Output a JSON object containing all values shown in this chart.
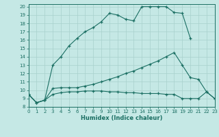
{
  "xlabel": "Humidex (Indice chaleur)",
  "background_color": "#c5e8e5",
  "grid_color": "#a8d0cc",
  "line_color": "#1a6e62",
  "xlim": [
    0,
    23
  ],
  "ylim": [
    8,
    20.3
  ],
  "x_ticks": [
    0,
    1,
    2,
    3,
    4,
    5,
    6,
    7,
    8,
    9,
    10,
    11,
    12,
    13,
    14,
    15,
    16,
    17,
    18,
    19,
    20,
    21,
    22,
    23
  ],
  "y_ticks": [
    8,
    9,
    10,
    11,
    12,
    13,
    14,
    15,
    16,
    17,
    18,
    19,
    20
  ],
  "line1_x": [
    0,
    1,
    2,
    3,
    4,
    5,
    6,
    7,
    8,
    9,
    10,
    11,
    12,
    13,
    14,
    15,
    16,
    17,
    18,
    19,
    20
  ],
  "line1_y": [
    9.5,
    8.5,
    8.8,
    13.0,
    14.0,
    15.3,
    16.2,
    17.0,
    17.5,
    18.2,
    19.2,
    19.0,
    18.5,
    18.3,
    20.0,
    20.0,
    20.0,
    20.0,
    19.3,
    19.2,
    16.2
  ],
  "line2_x": [
    0,
    1,
    2,
    3,
    4,
    5,
    6,
    7,
    8,
    9,
    10,
    11,
    12,
    13,
    14,
    15,
    16,
    17,
    18,
    19,
    20,
    21,
    22,
    23
  ],
  "line2_y": [
    9.5,
    8.5,
    8.8,
    10.2,
    10.3,
    10.3,
    10.3,
    10.5,
    10.7,
    11.0,
    11.3,
    11.6,
    12.0,
    12.3,
    12.7,
    13.1,
    13.5,
    14.0,
    14.5,
    13.0,
    11.5,
    11.3,
    9.8,
    9.0
  ],
  "line3_x": [
    0,
    1,
    2,
    3,
    4,
    5,
    6,
    7,
    8,
    9,
    10,
    11,
    12,
    13,
    14,
    15,
    16,
    17,
    18,
    19,
    20,
    21,
    22,
    23
  ],
  "line3_y": [
    9.5,
    8.5,
    8.8,
    9.5,
    9.7,
    9.8,
    9.8,
    9.9,
    9.9,
    9.9,
    9.8,
    9.8,
    9.7,
    9.7,
    9.6,
    9.6,
    9.6,
    9.5,
    9.5,
    9.0,
    9.0,
    9.0,
    9.8,
    9.0
  ]
}
